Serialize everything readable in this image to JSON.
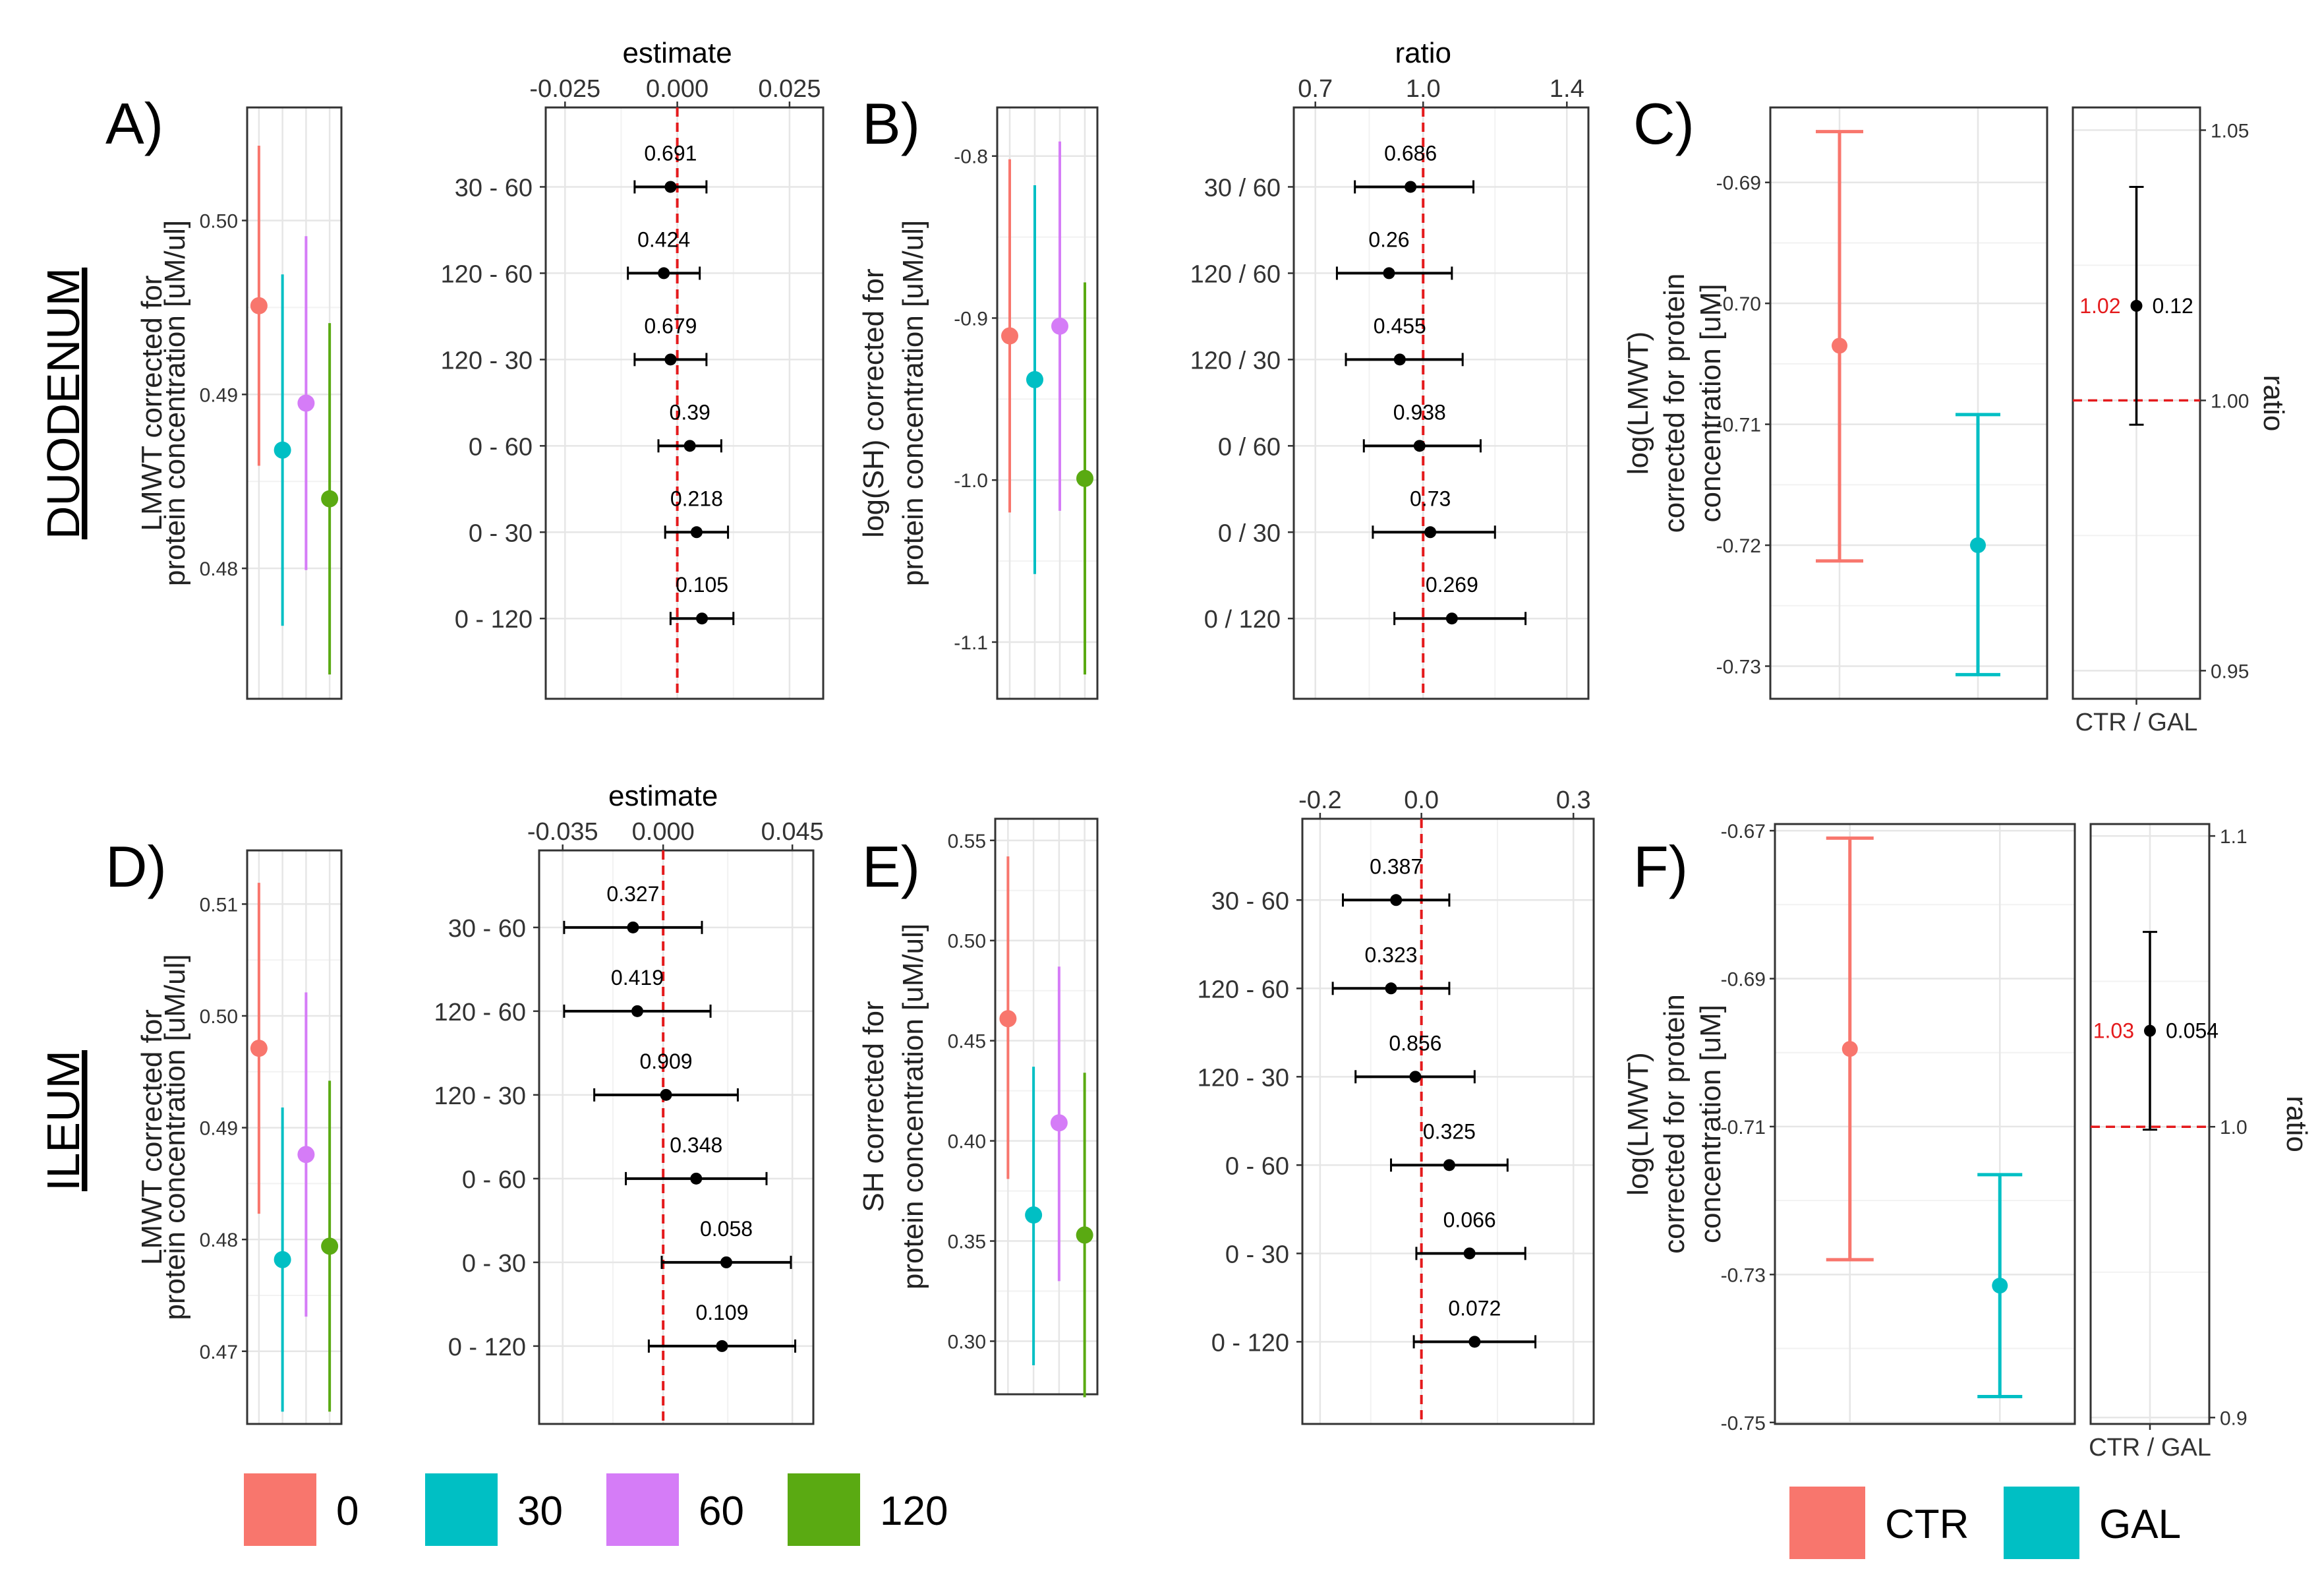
{
  "colors": {
    "t0": "#F8766D",
    "t30": "#00BFC4",
    "t60": "#D57CF7",
    "t120": "#5AAA12",
    "CTR": "#F8766D",
    "GAL": "#00BFC4",
    "ref": "#E41A1C",
    "ink": "#000000"
  },
  "sections": {
    "top": "DUODENUM",
    "bottom": "ILEUM"
  },
  "legend_time": {
    "labels": [
      "0",
      "30",
      "60",
      "120"
    ]
  },
  "legend_group": {
    "labels": [
      "CTR",
      "GAL"
    ]
  },
  "chart_data": [
    {
      "id": "A_means",
      "panel": "A)",
      "type": "scatter",
      "ylabel": [
        "LMWT corrected for",
        "protein concentration [uM/ul]"
      ],
      "ylim": [
        0.4725,
        0.5065
      ],
      "yticks": [
        0.48,
        0.49,
        0.5
      ],
      "ytick_labels": [
        "0.48",
        "0.49",
        "0.50"
      ],
      "series": [
        {
          "name": "0",
          "mean": 0.4951,
          "low": 0.4859,
          "high": 0.5043
        },
        {
          "name": "30",
          "mean": 0.4868,
          "low": 0.4767,
          "high": 0.4969
        },
        {
          "name": "60",
          "mean": 0.4895,
          "low": 0.4799,
          "high": 0.4991
        },
        {
          "name": "120",
          "mean": 0.484,
          "low": 0.4739,
          "high": 0.4941
        }
      ]
    },
    {
      "id": "A_contrasts",
      "type": "scatter",
      "xlabel": "estimate",
      "xlim": [
        -0.0293,
        0.0325
      ],
      "xticks": [
        -0.025,
        0,
        0.025
      ],
      "xtick_labels": [
        "-0.025",
        "0.000",
        "0.025"
      ],
      "ref": 0,
      "rows": [
        {
          "label": "30 - 60",
          "est": -0.0015,
          "low": -0.0095,
          "high": 0.0065,
          "p": "0.691"
        },
        {
          "label": "120 - 60",
          "est": -0.003,
          "low": -0.011,
          "high": 0.005,
          "p": "0.424"
        },
        {
          "label": "120 - 30",
          "est": -0.0015,
          "low": -0.0095,
          "high": 0.0065,
          "p": "0.679"
        },
        {
          "label": "0 - 60",
          "est": 0.0028,
          "low": -0.0042,
          "high": 0.0098,
          "p": "0.39"
        },
        {
          "label": "0 - 30",
          "est": 0.0043,
          "low": -0.0027,
          "high": 0.0113,
          "p": "0.218"
        },
        {
          "label": "0 - 120",
          "est": 0.0055,
          "low": -0.0015,
          "high": 0.0125,
          "p": "0.105"
        }
      ]
    },
    {
      "id": "B_means",
      "panel": "B)",
      "type": "scatter",
      "ylabel": [
        "log(SH) corrected for",
        "protein concentration [uM/ul]"
      ],
      "ylim": [
        -1.135,
        -0.77
      ],
      "yticks": [
        -1.1,
        -1.0,
        -0.9,
        -0.8
      ],
      "ytick_labels": [
        "-1.1",
        "-1.0",
        "-0.9",
        "-0.8"
      ],
      "series": [
        {
          "name": "0",
          "mean": -0.911,
          "low": -1.02,
          "high": -0.802
        },
        {
          "name": "30",
          "mean": -0.938,
          "low": -1.058,
          "high": -0.818
        },
        {
          "name": "60",
          "mean": -0.905,
          "low": -1.019,
          "high": -0.791
        },
        {
          "name": "120",
          "mean": -0.999,
          "low": -1.12,
          "high": -0.878
        }
      ]
    },
    {
      "id": "B_contrasts",
      "type": "scatter",
      "xlabel": "ratio",
      "xlim": [
        0.64,
        1.46
      ],
      "xticks": [
        0.7,
        1.0,
        1.4
      ],
      "xtick_labels": [
        "0.7",
        "1.0",
        "1.4"
      ],
      "ref": 1.0,
      "rows": [
        {
          "label": "30 / 60",
          "est": 0.965,
          "low": 0.81,
          "high": 1.14,
          "p": "0.686"
        },
        {
          "label": "120 / 60",
          "est": 0.905,
          "low": 0.76,
          "high": 1.08,
          "p": "0.26"
        },
        {
          "label": "120 / 30",
          "est": 0.935,
          "low": 0.785,
          "high": 1.11,
          "p": "0.455"
        },
        {
          "label": "0 / 60",
          "est": 0.99,
          "low": 0.835,
          "high": 1.16,
          "p": "0.938"
        },
        {
          "label": "0 / 30",
          "est": 1.02,
          "low": 0.86,
          "high": 1.2,
          "p": "0.73"
        },
        {
          "label": "0 / 120",
          "est": 1.08,
          "low": 0.92,
          "high": 1.285,
          "p": "0.269"
        }
      ]
    },
    {
      "id": "C_means",
      "panel": "C)",
      "type": "scatter",
      "ylabel": [
        "log(LMWT)",
        "corrected for protein",
        "concentration [uM]"
      ],
      "ylim": [
        -0.7327,
        -0.6838
      ],
      "yticks": [
        -0.73,
        -0.72,
        -0.71,
        -0.7,
        -0.69
      ],
      "ytick_labels": [
        "-0.73",
        "-0.72",
        "-0.71",
        "-0.70",
        "-0.69"
      ],
      "series": [
        {
          "name": "CTR",
          "mean": -0.7035,
          "low": -0.7213,
          "high": -0.6858
        },
        {
          "name": "GAL",
          "mean": -0.72,
          "low": -0.7307,
          "high": -0.7092
        }
      ]
    },
    {
      "id": "C_ratio",
      "type": "scatter",
      "ylabel": "ratio",
      "xlabel": "CTR / GAL",
      "ylim": [
        0.9448,
        1.0542
      ],
      "yticks": [
        0.95,
        1.0,
        1.05
      ],
      "ytick_labels": [
        "0.95",
        "1.00",
        "1.05"
      ],
      "ref": 1.0,
      "point": {
        "est": 1.0175,
        "low": 0.9955,
        "high": 1.0395,
        "est_label": "1.02",
        "p": "0.12"
      }
    },
    {
      "id": "D_means",
      "panel": "D)",
      "type": "scatter",
      "ylabel": [
        "LMWT corrected for",
        "protein concentration [uM/ul]"
      ],
      "ylim": [
        0.4635,
        0.5148
      ],
      "yticks": [
        0.47,
        0.48,
        0.49,
        0.5,
        0.51
      ],
      "ytick_labels": [
        "0.47",
        "0.48",
        "0.49",
        "0.50",
        "0.51"
      ],
      "series": [
        {
          "name": "0",
          "mean": 0.4971,
          "low": 0.4823,
          "high": 0.5119
        },
        {
          "name": "30",
          "mean": 0.4782,
          "low": 0.4646,
          "high": 0.4918
        },
        {
          "name": "60",
          "mean": 0.4876,
          "low": 0.4731,
          "high": 0.5021
        },
        {
          "name": "120",
          "mean": 0.4794,
          "low": 0.4646,
          "high": 0.4942
        }
      ]
    },
    {
      "id": "D_contrasts",
      "type": "scatter",
      "xlabel": "estimate",
      "xlim": [
        -0.0432,
        0.0523
      ],
      "xticks": [
        -0.035,
        0,
        0.045
      ],
      "xtick_labels": [
        "-0.035",
        "0.000",
        "0.045"
      ],
      "ref": 0,
      "rows": [
        {
          "label": "30 - 60",
          "est": -0.0105,
          "low": -0.0345,
          "high": 0.0135,
          "p": "0.327"
        },
        {
          "label": "120 - 60",
          "est": -0.009,
          "low": -0.0345,
          "high": 0.0165,
          "p": "0.419"
        },
        {
          "label": "120 - 30",
          "est": 0.001,
          "low": -0.024,
          "high": 0.026,
          "p": "0.909"
        },
        {
          "label": "0 - 60",
          "est": 0.0115,
          "low": -0.013,
          "high": 0.036,
          "p": "0.348"
        },
        {
          "label": "0 - 30",
          "est": 0.022,
          "low": -0.0005,
          "high": 0.0445,
          "p": "0.058"
        },
        {
          "label": "0 - 120",
          "est": 0.0205,
          "low": -0.005,
          "high": 0.046,
          "p": "0.109"
        }
      ]
    },
    {
      "id": "E_means",
      "panel": "E)",
      "type": "scatter",
      "ylabel": [
        "SH corrected for",
        "protein concentration [uM/ul]"
      ],
      "ylim": [
        0.2735,
        0.5608
      ],
      "yticks": [
        0.3,
        0.35,
        0.4,
        0.45,
        0.5,
        0.55
      ],
      "ytick_labels": [
        "0.30",
        "0.35",
        "0.40",
        "0.45",
        "0.50",
        "0.55"
      ],
      "series": [
        {
          "name": "0",
          "mean": 0.461,
          "low": 0.381,
          "high": 0.542
        },
        {
          "name": "30",
          "mean": 0.363,
          "low": 0.288,
          "high": 0.437
        },
        {
          "name": "60",
          "mean": 0.409,
          "low": 0.33,
          "high": 0.487
        },
        {
          "name": "120",
          "mean": 0.353,
          "low": 0.272,
          "high": 0.434
        }
      ]
    },
    {
      "id": "E_contrasts",
      "type": "scatter",
      "xlabel": "",
      "xlim": [
        -0.235,
        0.34
      ],
      "xticks": [
        -0.2,
        0,
        0.3
      ],
      "xtick_labels": [
        "-0.2",
        "0.0",
        "0.3"
      ],
      "ref": 0,
      "rows": [
        {
          "label": "30 - 60",
          "est": -0.05,
          "low": -0.155,
          "high": 0.055,
          "p": "0.387"
        },
        {
          "label": "120 - 60",
          "est": -0.06,
          "low": -0.175,
          "high": 0.055,
          "p": "0.323"
        },
        {
          "label": "120 - 30",
          "est": -0.012,
          "low": -0.13,
          "high": 0.105,
          "p": "0.856"
        },
        {
          "label": "0 - 60",
          "est": 0.055,
          "low": -0.06,
          "high": 0.17,
          "p": "0.325"
        },
        {
          "label": "0 - 30",
          "est": 0.095,
          "low": -0.01,
          "high": 0.205,
          "p": "0.066"
        },
        {
          "label": "0 - 120",
          "est": 0.105,
          "low": -0.015,
          "high": 0.225,
          "p": "0.072"
        }
      ]
    },
    {
      "id": "F_means",
      "panel": "F)",
      "type": "scatter",
      "ylabel": [
        "log(LMWT)",
        "corrected for protein",
        "concentration [uM]"
      ],
      "ylim": [
        -0.7502,
        -0.6691
      ],
      "yticks": [
        -0.75,
        -0.73,
        -0.71,
        -0.69,
        -0.67
      ],
      "ytick_labels": [
        "-0.75",
        "-0.73",
        "-0.71",
        "-0.69",
        "-0.67"
      ],
      "series": [
        {
          "name": "CTR",
          "mean": -0.6995,
          "low": -0.728,
          "high": -0.671
        },
        {
          "name": "GAL",
          "mean": -0.7315,
          "low": -0.7465,
          "high": -0.7165
        }
      ]
    },
    {
      "id": "F_ratio",
      "type": "scatter",
      "ylabel": "ratio",
      "xlabel": "CTR / GAL",
      "ylim": [
        0.8978,
        1.1041
      ],
      "yticks": [
        0.9,
        1.0,
        1.1
      ],
      "ytick_labels": [
        "0.9",
        "1.0",
        "1.1"
      ],
      "ref": 1.0,
      "point": {
        "est": 1.033,
        "low": 0.999,
        "high": 1.067,
        "est_label": "1.03",
        "p": "0.054"
      }
    }
  ]
}
